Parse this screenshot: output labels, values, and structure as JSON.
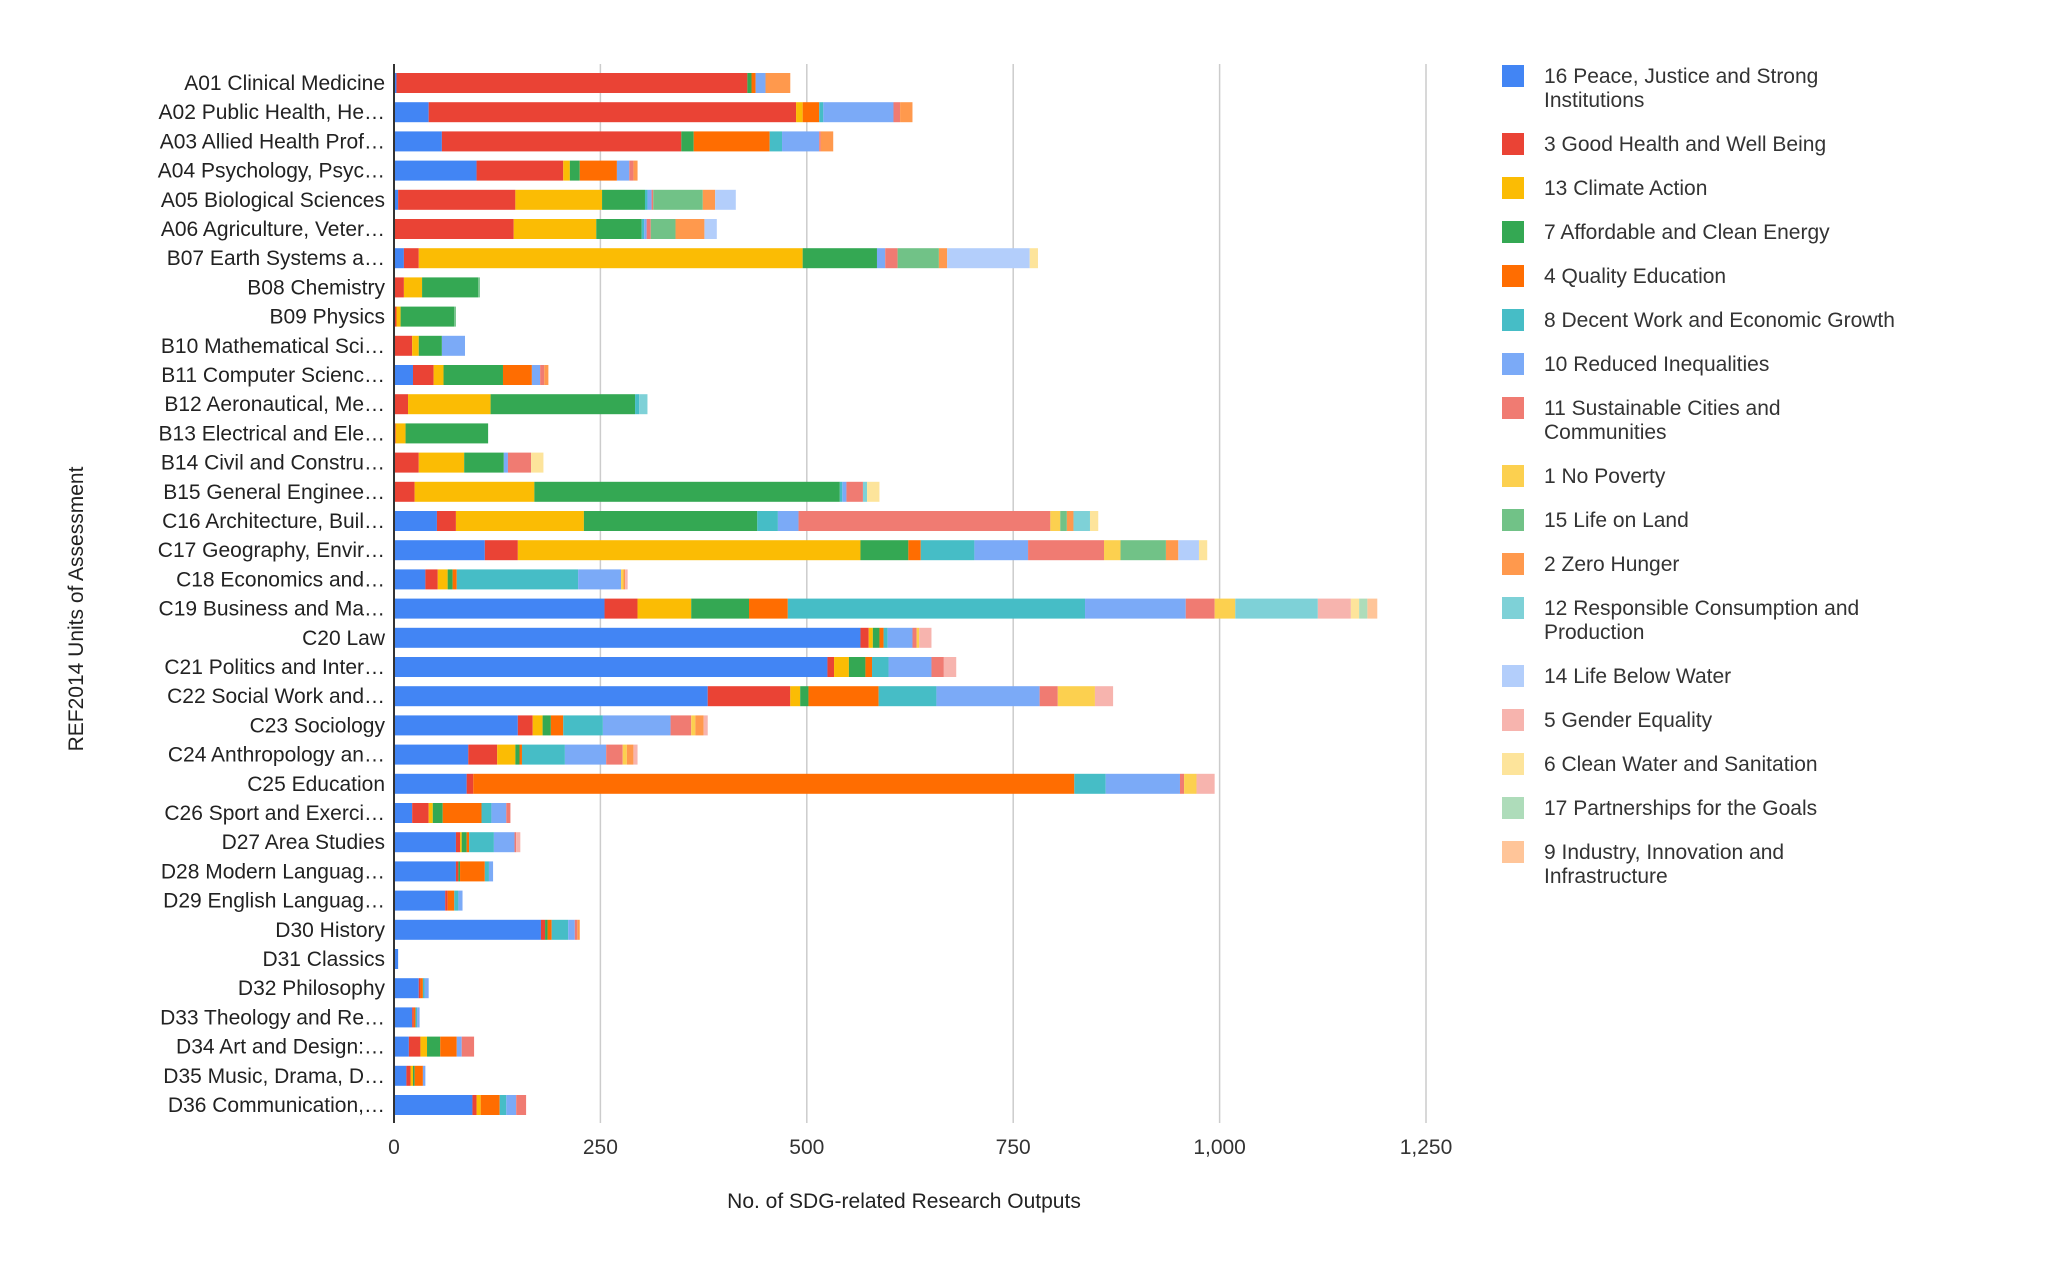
{
  "chart_data": {
    "type": "bar",
    "orientation": "horizontal",
    "stacked": true,
    "title": "",
    "xlabel": "No. of SDG-related Research Outputs",
    "ylabel": "REF2014 Units of Assessment",
    "xlim": [
      0,
      1250
    ],
    "xticks": [
      "0",
      "250",
      "500",
      "750",
      "1,000",
      "1,250"
    ],
    "grid": true,
    "legend_position": "right",
    "categories": [
      "A01 Clinical Medicine",
      "A02 Public Health, He…",
      "A03 Allied Health Prof…",
      "A04 Psychology, Psyc…",
      "A05 Biological Sciences",
      "A06 Agriculture, Veter…",
      "B07 Earth Systems a…",
      "B08 Chemistry",
      "B09 Physics",
      "B10 Mathematical Sci…",
      "B11 Computer Scienc…",
      "B12 Aeronautical, Me…",
      "B13 Electrical and Ele…",
      "B14 Civil and Constru…",
      "B15 General Enginee…",
      "C16 Architecture, Buil…",
      "C17 Geography, Envir…",
      "C18 Economics and…",
      "C19 Business and Ma…",
      "C20 Law",
      "C21 Politics and Inter…",
      "C22 Social Work and…",
      "C23 Sociology",
      "C24 Anthropology an…",
      "C25 Education",
      "C26 Sport and Exerci…",
      "D27 Area Studies",
      "D28 Modern Languag…",
      "D29 English Languag…",
      "D30 History",
      "D31 Classics",
      "D32 Philosophy",
      "D33 Theology and Re…",
      "D34 Art and Design:…",
      "D35 Music, Drama, D…",
      "D36 Communication,…"
    ],
    "series": [
      {
        "name": "16 Peace, Justice and Strong Institutions",
        "color": "#4285F4",
        "values": [
          3,
          42,
          58,
          100,
          5,
          0,
          12,
          0,
          0,
          0,
          23,
          0,
          0,
          0,
          0,
          52,
          110,
          38,
          255,
          565,
          525,
          380,
          150,
          90,
          88,
          22,
          75,
          75,
          62,
          178,
          5,
          30,
          22,
          18,
          15,
          95
        ]
      },
      {
        "name": "3 Good Health and Well Being",
        "color": "#EA4335",
        "values": [
          425,
          445,
          290,
          105,
          142,
          145,
          18,
          12,
          3,
          22,
          25,
          17,
          2,
          30,
          25,
          23,
          40,
          15,
          40,
          10,
          8,
          100,
          18,
          35,
          8,
          20,
          5,
          3,
          3,
          5,
          0,
          2,
          2,
          14,
          5,
          5
        ]
      },
      {
        "name": "13 Climate Action",
        "color": "#FBBC04",
        "values": [
          0,
          8,
          0,
          8,
          105,
          100,
          465,
          22,
          5,
          8,
          12,
          100,
          12,
          55,
          145,
          155,
          415,
          12,
          65,
          5,
          18,
          12,
          12,
          22,
          0,
          5,
          2,
          0,
          0,
          0,
          0,
          0,
          0,
          8,
          3,
          5
        ]
      },
      {
        "name": "7 Affordable and Clean Energy",
        "color": "#34A853",
        "values": [
          5,
          0,
          15,
          12,
          52,
          55,
          90,
          68,
          65,
          28,
          72,
          175,
          100,
          48,
          370,
          210,
          58,
          6,
          70,
          8,
          20,
          10,
          10,
          5,
          0,
          12,
          6,
          2,
          0,
          3,
          0,
          0,
          0,
          16,
          2,
          0
        ]
      },
      {
        "name": "4 Quality Education",
        "color": "#FF6D01",
        "values": [
          5,
          20,
          92,
          45,
          0,
          0,
          0,
          0,
          0,
          0,
          35,
          0,
          0,
          0,
          0,
          0,
          15,
          5,
          47,
          5,
          8,
          85,
          15,
          3,
          728,
          47,
          3,
          30,
          8,
          5,
          0,
          3,
          2,
          20,
          10,
          23
        ]
      },
      {
        "name": "8 Decent Work and Economic Growth",
        "color": "#46BDC6",
        "values": [
          0,
          5,
          15,
          0,
          3,
          3,
          0,
          0,
          0,
          0,
          0,
          5,
          0,
          0,
          3,
          25,
          65,
          147,
          360,
          5,
          20,
          70,
          48,
          52,
          38,
          12,
          30,
          5,
          5,
          20,
          0,
          2,
          2,
          0,
          0,
          8
        ]
      },
      {
        "name": "10 Reduced Inequalities",
        "color": "#7BAAF7",
        "values": [
          12,
          85,
          45,
          15,
          5,
          3,
          10,
          0,
          0,
          28,
          10,
          0,
          0,
          5,
          5,
          25,
          65,
          52,
          122,
          30,
          52,
          125,
          82,
          50,
          90,
          18,
          25,
          5,
          5,
          8,
          0,
          5,
          3,
          6,
          3,
          12
        ]
      },
      {
        "name": "11 Sustainable Cities and Communities",
        "color": "#F07B72",
        "values": [
          0,
          8,
          2,
          5,
          2,
          5,
          15,
          0,
          0,
          0,
          5,
          0,
          0,
          28,
          20,
          305,
          92,
          0,
          35,
          5,
          15,
          22,
          25,
          20,
          5,
          5,
          2,
          0,
          0,
          3,
          0,
          0,
          0,
          15,
          0,
          12
        ]
      },
      {
        "name": "1 No Poverty",
        "color": "#FCD04F",
        "values": [
          0,
          0,
          0,
          0,
          0,
          0,
          0,
          0,
          0,
          0,
          0,
          0,
          0,
          0,
          0,
          12,
          20,
          3,
          25,
          3,
          0,
          45,
          5,
          5,
          15,
          0,
          0,
          0,
          0,
          0,
          0,
          0,
          0,
          0,
          0,
          0
        ]
      },
      {
        "name": "15 Life on Land",
        "color": "#71C287",
        "values": [
          0,
          0,
          0,
          0,
          60,
          30,
          50,
          2,
          2,
          0,
          0,
          0,
          0,
          0,
          0,
          8,
          55,
          0,
          0,
          0,
          0,
          0,
          0,
          0,
          0,
          0,
          0,
          0,
          0,
          0,
          0,
          0,
          0,
          0,
          0,
          0
        ]
      },
      {
        "name": "2 Zero Hunger",
        "color": "#FF994D",
        "values": [
          30,
          15,
          15,
          5,
          15,
          35,
          10,
          0,
          0,
          0,
          5,
          0,
          0,
          0,
          0,
          8,
          15,
          2,
          0,
          0,
          0,
          0,
          10,
          8,
          0,
          0,
          0,
          0,
          0,
          3,
          0,
          0,
          0,
          0,
          0,
          0
        ]
      },
      {
        "name": "12 Responsible Consumption and Production",
        "color": "#7ED1D7",
        "values": [
          0,
          0,
          0,
          0,
          0,
          0,
          0,
          0,
          0,
          0,
          0,
          10,
          0,
          0,
          5,
          20,
          0,
          0,
          100,
          0,
          0,
          0,
          0,
          0,
          0,
          0,
          0,
          0,
          0,
          0,
          0,
          0,
          0,
          0,
          0,
          0
        ]
      },
      {
        "name": "14 Life Below Water",
        "color": "#B3CEFB",
        "values": [
          0,
          0,
          0,
          0,
          25,
          15,
          100,
          0,
          0,
          0,
          0,
          0,
          0,
          0,
          0,
          0,
          25,
          0,
          0,
          0,
          0,
          0,
          0,
          0,
          0,
          0,
          0,
          0,
          0,
          0,
          0,
          0,
          0,
          0,
          0,
          0
        ]
      },
      {
        "name": "5 Gender Equality",
        "color": "#F7B4AE",
        "values": [
          0,
          0,
          0,
          0,
          0,
          0,
          0,
          0,
          0,
          0,
          0,
          0,
          0,
          0,
          0,
          0,
          0,
          3,
          40,
          15,
          15,
          22,
          5,
          5,
          22,
          0,
          5,
          0,
          0,
          0,
          0,
          0,
          0,
          0,
          0,
          0
        ]
      },
      {
        "name": "6 Clean Water and Sanitation",
        "color": "#FDE49B",
        "values": [
          0,
          0,
          0,
          0,
          0,
          0,
          10,
          0,
          0,
          0,
          0,
          0,
          0,
          15,
          15,
          10,
          10,
          0,
          10,
          0,
          0,
          0,
          0,
          0,
          0,
          0,
          0,
          0,
          0,
          0,
          0,
          0,
          0,
          0,
          0,
          0
        ]
      },
      {
        "name": "17 Partnerships for the Goals",
        "color": "#AEDCBA",
        "values": [
          0,
          0,
          0,
          0,
          0,
          0,
          0,
          0,
          0,
          0,
          0,
          0,
          0,
          0,
          0,
          0,
          0,
          0,
          10,
          0,
          0,
          0,
          0,
          0,
          0,
          0,
          0,
          0,
          0,
          0,
          0,
          0,
          0,
          0,
          0,
          0
        ]
      },
      {
        "name": "9 Industry, Innovation and Infrastructure",
        "color": "#FFC599",
        "values": [
          0,
          0,
          0,
          0,
          0,
          0,
          0,
          0,
          0,
          0,
          0,
          0,
          0,
          0,
          0,
          0,
          0,
          0,
          12,
          0,
          0,
          0,
          0,
          0,
          0,
          0,
          0,
          0,
          0,
          0,
          0,
          0,
          0,
          0,
          0,
          0
        ]
      }
    ]
  }
}
